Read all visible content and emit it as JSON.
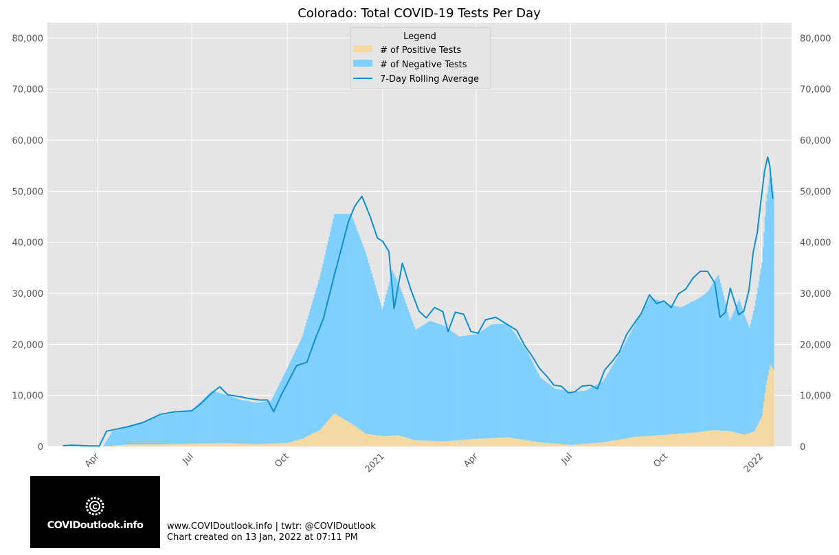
{
  "chart_data": {
    "type": "bar",
    "title": "Colorado: Total COVID-19 Tests Per Day",
    "xlabel": "",
    "ylabel": "",
    "x_range": [
      "2020-02-13",
      "2022-01-30"
    ],
    "ylim": [
      0,
      83000
    ],
    "y_ticks": [
      0,
      10000,
      20000,
      30000,
      40000,
      50000,
      60000,
      70000,
      80000
    ],
    "y_tick_labels": [
      "0",
      "10,000",
      "20,000",
      "30,000",
      "40,000",
      "50,000",
      "60,000",
      "70,000",
      "80,000"
    ],
    "x_ticks": [
      "2020-04-01",
      "2020-07-01",
      "2020-10-01",
      "2021-01-01",
      "2021-04-01",
      "2021-07-01",
      "2021-10-01",
      "2022-01-01"
    ],
    "x_tick_labels": [
      "Apr",
      "Jul",
      "Oct",
      "2021",
      "Apr",
      "Jul",
      "Oct",
      "2022"
    ],
    "grid": true,
    "stacked": true,
    "legend": {
      "title": "Legend",
      "placement": "top-center",
      "entries": [
        "# of Positive Tests",
        "# of Negative Tests",
        "7-Day Rolling Average"
      ]
    },
    "colors": {
      "positive": "#f5d9a2",
      "negative": "#80d0ff",
      "average": "#0c8fcf",
      "background": "#e5e5e5",
      "grid": "#ffffff"
    },
    "series": [
      {
        "name": "# of Positive Tests",
        "kind": "bar",
        "x": [
          "2020-03-07",
          "2020-04-06",
          "2020-05-01",
          "2020-06-01",
          "2020-07-01",
          "2020-08-01",
          "2020-09-01",
          "2020-10-01",
          "2020-10-15",
          "2020-11-01",
          "2020-11-15",
          "2020-12-01",
          "2020-12-15",
          "2021-01-01",
          "2021-01-15",
          "2021-02-01",
          "2021-03-01",
          "2021-04-01",
          "2021-05-01",
          "2021-06-01",
          "2021-07-01",
          "2021-08-01",
          "2021-09-01",
          "2021-10-01",
          "2021-11-01",
          "2021-11-15",
          "2021-12-01",
          "2021-12-15",
          "2021-12-25",
          "2022-01-01",
          "2022-01-05",
          "2022-01-09",
          "2022-01-12"
        ],
        "values": [
          0,
          0,
          400,
          400,
          550,
          650,
          450,
          700,
          1500,
          3200,
          6500,
          4500,
          2500,
          2000,
          2200,
          1200,
          1000,
          1500,
          1800,
          800,
          300,
          800,
          1900,
          2300,
          2800,
          3200,
          3000,
          2300,
          3000,
          6000,
          12000,
          16000,
          15000
        ]
      },
      {
        "name": "# of Negative Tests",
        "kind": "bar",
        "x": [
          "2020-03-07",
          "2020-04-06",
          "2020-04-15",
          "2020-05-01",
          "2020-06-01",
          "2020-07-01",
          "2020-07-20",
          "2020-08-15",
          "2020-09-01",
          "2020-09-15",
          "2020-10-01",
          "2020-10-15",
          "2020-11-01",
          "2020-11-15",
          "2020-12-01",
          "2020-12-15",
          "2020-12-31",
          "2021-01-10",
          "2021-01-20",
          "2021-02-01",
          "2021-02-15",
          "2021-03-01",
          "2021-03-15",
          "2021-04-01",
          "2021-04-15",
          "2021-05-01",
          "2021-05-20",
          "2021-06-01",
          "2021-06-15",
          "2021-07-01",
          "2021-07-15",
          "2021-08-01",
          "2021-08-15",
          "2021-09-01",
          "2021-09-15",
          "2021-10-01",
          "2021-10-15",
          "2021-11-01",
          "2021-11-10",
          "2021-11-20",
          "2021-12-01",
          "2021-12-10",
          "2021-12-20",
          "2022-01-01",
          "2022-01-05",
          "2022-01-09",
          "2022-01-12"
        ],
        "values": [
          50,
          0,
          2800,
          3400,
          5700,
          6600,
          10300,
          8700,
          8100,
          8400,
          14800,
          20000,
          30000,
          39000,
          41000,
          35500,
          24800,
          32300,
          27800,
          21600,
          23500,
          22600,
          20300,
          20500,
          22200,
          22300,
          17300,
          12800,
          10800,
          10400,
          10400,
          12000,
          16300,
          22200,
          27100,
          25700,
          24700,
          26200,
          27300,
          30500,
          21600,
          26300,
          20500,
          30000,
          36000,
          38000,
          35000
        ]
      },
      {
        "name": "7-Day Rolling Average",
        "kind": "line",
        "x": [
          "2020-02-28",
          "2020-03-07",
          "2020-03-15",
          "2020-03-25",
          "2020-04-03",
          "2020-04-10",
          "2020-04-20",
          "2020-05-01",
          "2020-05-15",
          "2020-06-01",
          "2020-06-15",
          "2020-07-01",
          "2020-07-10",
          "2020-07-20",
          "2020-07-28",
          "2020-08-05",
          "2020-08-15",
          "2020-08-25",
          "2020-09-05",
          "2020-09-12",
          "2020-09-18",
          "2020-09-25",
          "2020-10-01",
          "2020-10-10",
          "2020-10-20",
          "2020-10-28",
          "2020-11-05",
          "2020-11-15",
          "2020-11-22",
          "2020-11-29",
          "2020-12-05",
          "2020-12-12",
          "2020-12-20",
          "2020-12-27",
          "2021-01-01",
          "2021-01-07",
          "2021-01-12",
          "2021-01-20",
          "2021-01-28",
          "2021-02-05",
          "2021-02-12",
          "2021-02-20",
          "2021-02-28",
          "2021-03-05",
          "2021-03-12",
          "2021-03-20",
          "2021-03-27",
          "2021-04-03",
          "2021-04-10",
          "2021-04-20",
          "2021-05-01",
          "2021-05-10",
          "2021-05-18",
          "2021-05-25",
          "2021-06-01",
          "2021-06-08",
          "2021-06-15",
          "2021-06-22",
          "2021-06-29",
          "2021-07-05",
          "2021-07-12",
          "2021-07-20",
          "2021-07-27",
          "2021-08-03",
          "2021-08-10",
          "2021-08-17",
          "2021-08-24",
          "2021-08-31",
          "2021-09-07",
          "2021-09-15",
          "2021-09-22",
          "2021-09-29",
          "2021-10-06",
          "2021-10-13",
          "2021-10-20",
          "2021-10-27",
          "2021-11-03",
          "2021-11-10",
          "2021-11-17",
          "2021-11-22",
          "2021-11-27",
          "2021-12-02",
          "2021-12-06",
          "2021-12-10",
          "2021-12-15",
          "2021-12-20",
          "2021-12-24",
          "2021-12-28",
          "2022-01-01",
          "2022-01-04",
          "2022-01-07",
          "2022-01-09",
          "2022-01-11",
          "2022-01-12"
        ],
        "values": [
          150,
          250,
          200,
          100,
          100,
          3000,
          3400,
          3900,
          4700,
          6300,
          6800,
          7000,
          8400,
          10400,
          11700,
          10100,
          9800,
          9400,
          9100,
          9100,
          6800,
          10000,
          12300,
          15800,
          16500,
          21000,
          25100,
          33200,
          38600,
          44000,
          47000,
          49000,
          45000,
          40800,
          40200,
          38200,
          27000,
          35900,
          30800,
          26500,
          25200,
          27200,
          26400,
          22500,
          26300,
          25900,
          22500,
          22200,
          24800,
          25300,
          23900,
          22800,
          19700,
          17700,
          15300,
          13800,
          12000,
          11800,
          10500,
          10700,
          11800,
          12000,
          11300,
          15000,
          16600,
          18500,
          21900,
          24000,
          26000,
          29700,
          28000,
          28500,
          27200,
          29900,
          30800,
          33000,
          34300,
          34300,
          32000,
          25300,
          26200,
          31000,
          28400,
          25800,
          26500,
          30700,
          38000,
          42000,
          49000,
          54000,
          56700,
          55000,
          50000,
          48500
        ]
      }
    ]
  },
  "branding": {
    "logo_text": "COVIDoutlook.info",
    "footer_line1": "www.COVIDoutlook.info | twtr: @COVIDoutlook",
    "footer_line2": "Chart created on 13 Jan, 2022 at 07:11 PM"
  }
}
